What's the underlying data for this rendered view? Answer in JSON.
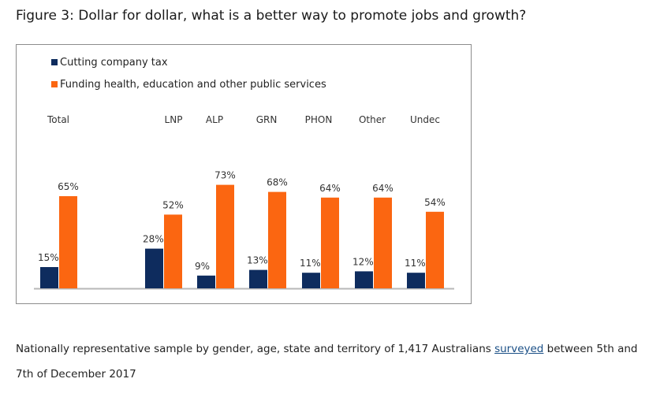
{
  "figure_title": "Figure 3: Dollar for dollar, what is a better way to promote jobs and growth?",
  "footnote": {
    "before": "Nationally representative sample by gender, age, state and territory of 1,417 Australians ",
    "link": "surveyed",
    "after": " between 5th and 7th of December 2017"
  },
  "colors": {
    "series1": "#0e2c5e",
    "series2": "#fb6611",
    "axis": "#b7b7b7",
    "border": "#8c8c8c"
  },
  "chart_data": {
    "type": "bar",
    "title": "",
    "xlabel": "",
    "ylabel": "",
    "ylim": [
      0,
      80
    ],
    "grid": false,
    "legend_position": "top-left",
    "categories": [
      "Total",
      "LNP",
      "ALP",
      "GRN",
      "PHON",
      "Other",
      "Undec"
    ],
    "series": [
      {
        "name": "Cutting company tax",
        "values": [
          15,
          28,
          9,
          13,
          11,
          12,
          11
        ],
        "labels": [
          "15%",
          "28%",
          "9%",
          "13%",
          "11%",
          "12%",
          "11%"
        ]
      },
      {
        "name": "Funding health, education and other public services",
        "values": [
          65,
          52,
          73,
          68,
          64,
          64,
          54
        ],
        "labels": [
          "65%",
          "52%",
          "73%",
          "68%",
          "64%",
          "64%",
          "54%"
        ]
      }
    ]
  }
}
